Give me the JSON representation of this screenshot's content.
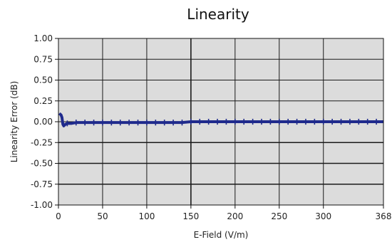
{
  "chart_data": {
    "type": "line",
    "title": "Linearity",
    "xlabel": "E-Field (V/m)",
    "ylabel": "Linearity Error (dB)",
    "xlim": [
      0,
      368
    ],
    "ylim": [
      -1.0,
      1.0
    ],
    "x_ticks": [
      0,
      50,
      100,
      150,
      200,
      250,
      300,
      368
    ],
    "x_tick_labels": [
      "0",
      "50",
      "100",
      "150",
      "200",
      "250",
      "300",
      "368"
    ],
    "y_ticks": [
      1.0,
      0.75,
      0.5,
      0.25,
      0.0,
      -0.25,
      -0.5,
      -0.75,
      -1.0
    ],
    "y_tick_labels": [
      "1.00",
      "0.75",
      "0.50",
      "0.25",
      "0.00",
      "-0.25",
      "-0.50",
      "-0.75",
      "-1.00"
    ],
    "grid": true,
    "background_color": "#dcdcdc",
    "grid_color": "#1a1a1a",
    "series": [
      {
        "color": "#1f2a8c",
        "x": [
          1,
          2,
          3,
          4,
          5,
          6,
          7,
          8,
          10,
          12,
          15,
          20,
          25,
          30,
          40,
          50,
          60,
          70,
          80,
          90,
          100,
          110,
          120,
          130,
          140,
          150,
          160,
          170,
          180,
          200,
          220,
          240,
          260,
          280,
          300,
          320,
          340,
          368
        ],
        "y": [
          0.1,
          0.09,
          0.08,
          0.05,
          -0.03,
          -0.05,
          -0.04,
          -0.03,
          -0.02,
          -0.02,
          -0.02,
          -0.01,
          -0.01,
          -0.01,
          -0.01,
          -0.01,
          -0.01,
          -0.01,
          -0.01,
          -0.01,
          -0.01,
          -0.01,
          -0.01,
          -0.01,
          -0.01,
          0.0,
          0.0,
          0.0,
          0.0,
          0.0,
          0.0,
          0.0,
          0.0,
          0.0,
          0.0,
          0.0,
          0.0,
          0.0
        ],
        "error_bar_x": [
          10,
          20,
          30,
          40,
          50,
          60,
          70,
          80,
          90,
          100,
          110,
          120,
          130,
          140,
          150,
          160,
          170,
          180,
          190,
          200,
          210,
          220,
          230,
          240,
          250,
          260,
          270,
          280,
          290,
          300,
          310,
          320,
          330,
          340,
          350,
          360
        ],
        "error_bar_half_height": 0.035
      }
    ]
  }
}
